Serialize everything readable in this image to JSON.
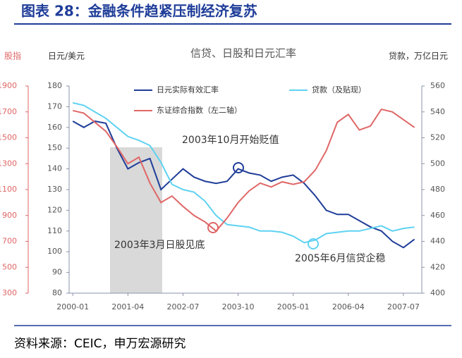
{
  "header": "图表 28：金融条件趋紧压制经济复苏",
  "footer": "资料来源：CEIC，申万宏源研究",
  "chart_data": {
    "type": "line",
    "title": "信贷、日股和日元汇率",
    "y_label": "日元/美元",
    "y2_label": "贷款，万亿日元",
    "y3_label": "股指",
    "x": [
      "2000-01",
      "2000-04",
      "2000-07",
      "2000-10",
      "2001-01",
      "2001-04",
      "2001-07",
      "2001-10",
      "2002-01",
      "2002-04",
      "2002-07",
      "2002-10",
      "2003-01",
      "2003-04",
      "2003-07",
      "2003-10",
      "2004-01",
      "2004-04",
      "2004-07",
      "2004-10",
      "2005-01",
      "2005-04",
      "2005-07",
      "2005-10",
      "2006-01",
      "2006-04",
      "2006-07",
      "2006-10",
      "2007-01",
      "2007-04",
      "2007-07",
      "2007-10"
    ],
    "xlim": [
      "1999-12",
      "2007-12"
    ],
    "xticks": [
      "2000-01",
      "2001-04",
      "2002-07",
      "2003-10",
      "2005-01",
      "2006-04",
      "2007-07"
    ],
    "ylim": [
      80,
      180
    ],
    "yticks": [
      80,
      90,
      100,
      110,
      120,
      130,
      140,
      150,
      160,
      170,
      180
    ],
    "y2lim": [
      400,
      560
    ],
    "y2ticks": [
      400,
      420,
      440,
      460,
      480,
      500,
      520,
      540,
      560
    ],
    "y3lim": [
      300,
      1900
    ],
    "y3ticks": [
      300,
      500,
      700,
      900,
      1100,
      1300,
      1500,
      1700,
      1900
    ],
    "series": [
      {
        "name": "日元实际有效汇率",
        "color": "#1f3d99",
        "axis": "y",
        "values": [
          163,
          160,
          163,
          162,
          150,
          140,
          143,
          145,
          130,
          135,
          140,
          136,
          134,
          133,
          134,
          140,
          138,
          137,
          134,
          136,
          137,
          133,
          127,
          120,
          118,
          118,
          115,
          112,
          110,
          105,
          102,
          106
        ]
      },
      {
        "name": "贷款（及贴现）",
        "color": "#5fd2f2",
        "axis": "y2",
        "values": [
          547,
          545,
          540,
          535,
          528,
          521,
          518,
          514,
          501,
          484,
          480,
          478,
          471,
          460,
          453,
          452,
          451,
          448,
          448,
          447,
          444,
          439,
          441,
          446,
          447,
          448,
          448,
          450,
          452,
          448,
          450,
          451
        ]
      },
      {
        "name": "东证综合指数（左二轴）",
        "color": "#e06666",
        "axis": "y3",
        "values": [
          1710,
          1690,
          1620,
          1550,
          1430,
          1300,
          1350,
          1150,
          1000,
          1050,
          970,
          900,
          850,
          780,
          880,
          1000,
          1090,
          1150,
          1120,
          1160,
          1140,
          1160,
          1250,
          1400,
          1620,
          1680,
          1560,
          1590,
          1720,
          1700,
          1640,
          1580
        ]
      }
    ],
    "annotations": [
      "2003年10月开始贬值",
      "2003年3月日股见底",
      "2005年6月信贷企稳"
    ]
  }
}
